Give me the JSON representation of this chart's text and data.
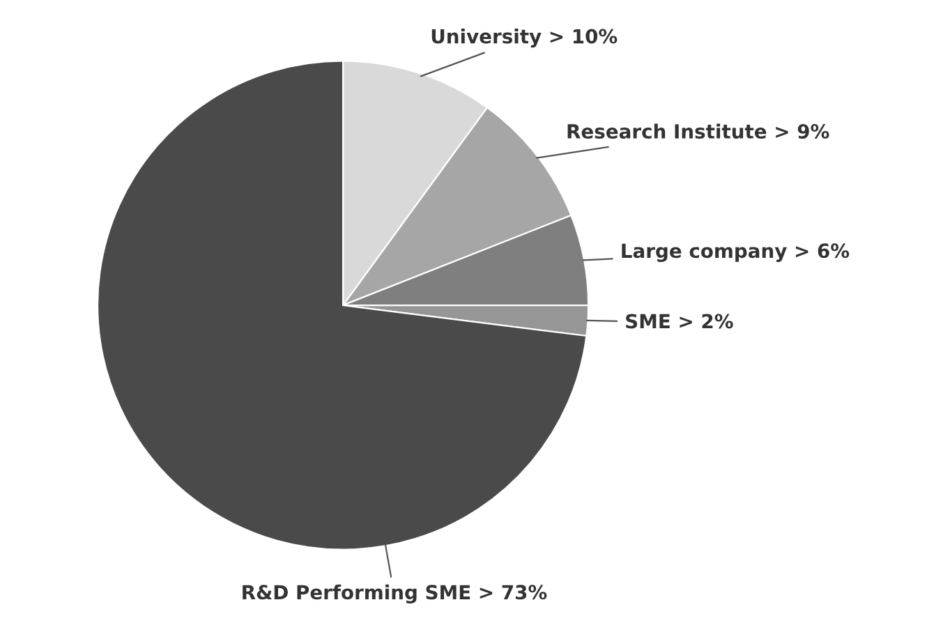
{
  "chart_data": {
    "type": "pie",
    "categories": [
      "University",
      "Research Institute",
      "Large company",
      "SME",
      "R&D Performing SME"
    ],
    "values": [
      10,
      9,
      6,
      2,
      73
    ],
    "value_labels": [
      "> 10%",
      "> 9%",
      "> 6%",
      "> 2%",
      "> 73%"
    ],
    "colors": [
      "#d9d9d9",
      "#a6a6a6",
      "#7f7f7f",
      "#969696",
      "#4a4a4a"
    ],
    "legend": false
  }
}
